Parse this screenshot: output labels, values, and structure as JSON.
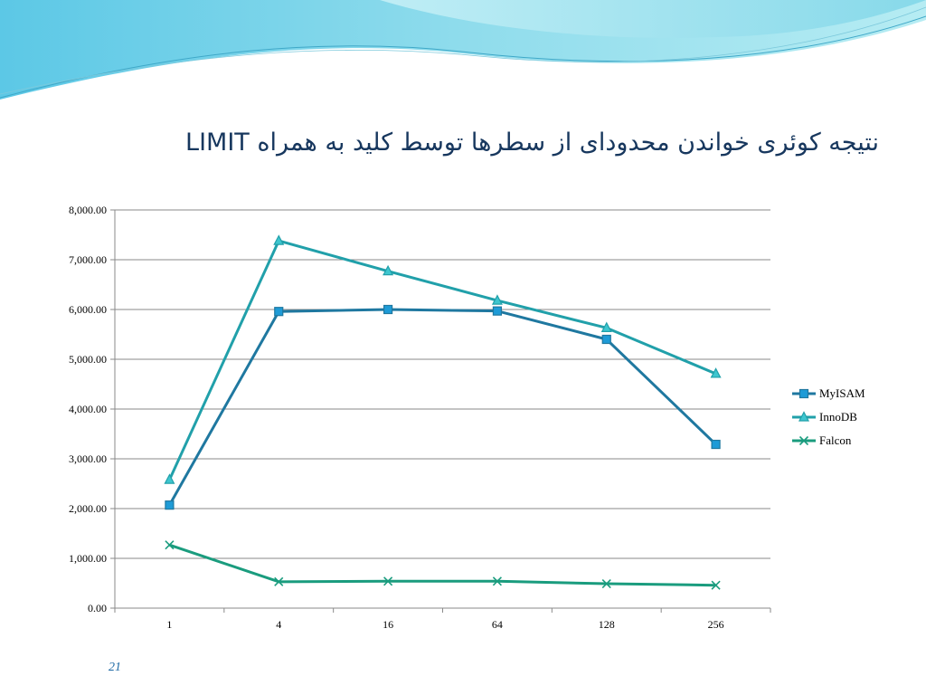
{
  "slide": {
    "title": "نتیجه کوئری خواندن محدودای از سطرها توسط کلید  به همراه LIMIT",
    "page_number": "21",
    "theme_colors": {
      "wave_light": "#bfeff5",
      "wave_dark": "#4fc3dc",
      "title": "#17375e"
    }
  },
  "chart_data": {
    "type": "line",
    "categories": [
      "1",
      "4",
      "16",
      "64",
      "128",
      "256"
    ],
    "ylim": [
      0,
      8000
    ],
    "ytick_step": 1000,
    "ytick_labels": [
      "0.00",
      "1,000.00",
      "2,000.00",
      "3,000.00",
      "4,000.00",
      "5,000.00",
      "6,000.00",
      "7,000.00",
      "8,000.00"
    ],
    "grid": true,
    "legend_position": "right",
    "series": [
      {
        "name": "MyISAM",
        "values": [
          2070,
          5960,
          6000,
          5970,
          5400,
          3290
        ],
        "color": "#1f78a0",
        "marker": "square"
      },
      {
        "name": "InnoDB",
        "values": [
          2580,
          7380,
          6770,
          6180,
          5630,
          4710
        ],
        "color": "#21a0aa",
        "marker": "triangle"
      },
      {
        "name": "Falcon",
        "values": [
          1270,
          530,
          540,
          540,
          490,
          460
        ],
        "color": "#1a9c7e",
        "marker": "x"
      }
    ]
  }
}
